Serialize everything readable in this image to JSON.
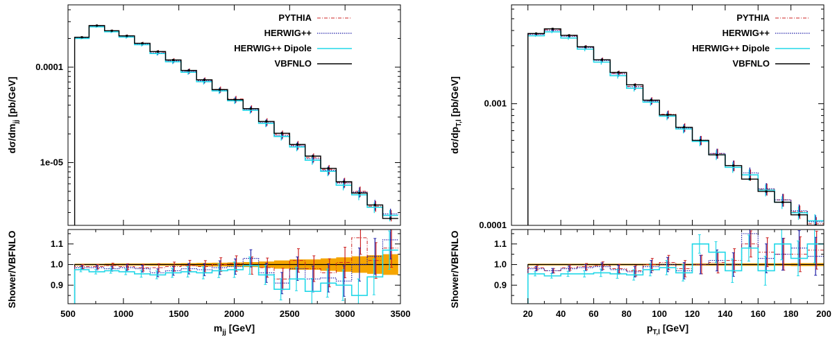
{
  "colors": {
    "PYTHIA": "#cc2222",
    "HERWIG++": "#1f1fa8",
    "HERWIG++ Dipole": "#22d8e8",
    "VBFNLO": "#000000",
    "band": "#f5a500"
  },
  "chart_data": [
    {
      "type": "line",
      "subtype": "histogram-step",
      "yscale": "log",
      "xlabel": "m",
      "xlabel_sub": "jj",
      "xlabel_unit": " [GeV]",
      "ylabel": "dσ/dm",
      "ylabel_sub": "jj",
      "ylabel_unit": " [pb/GeV]",
      "ratio_ylabel": "Shower/VBFNLO",
      "xlim": [
        500,
        3500
      ],
      "ylim": [
        2.2e-06,
        0.00045
      ],
      "ratio_ylim": [
        0.81,
        1.17
      ],
      "xticks": [
        500,
        1000,
        1500,
        2000,
        2500,
        3000,
        3500
      ],
      "xtick_labels": [
        "500",
        "1000",
        "1500",
        "2000",
        "2500",
        "3000",
        "3500"
      ],
      "yticks": [
        0.0001,
        1e-05
      ],
      "ytick_labels": [
        "0.0001",
        "1e-05"
      ],
      "ratio_yticks": [
        1.1,
        1.0,
        0.9
      ],
      "ratio_ytick_labels": [
        "1.1",
        "1.0",
        "0.9"
      ],
      "legend": "top-right",
      "bin_edges": [
        560,
        690,
        830,
        960,
        1100,
        1240,
        1380,
        1520,
        1660,
        1800,
        1940,
        2080,
        2220,
        2360,
        2500,
        2640,
        2780,
        2920,
        3060,
        3200,
        3340,
        3480
      ],
      "series": [
        {
          "name": "PYTHIA",
          "values": [
            0.000205,
            0.000271,
            0.00024,
            0.000212,
            0.000177,
            0.000144,
            0.000118,
            9.15e-05,
            7.33e-05,
            5.85e-05,
            4.64e-05,
            3.68e-05,
            2.68e-05,
            1.98e-05,
            1.53e-05,
            1.13e-05,
            8.5e-06,
            6.2e-06,
            5e-06,
            3.5e-06,
            2.8e-06
          ],
          "ratio": [
            0.99,
            0.99,
            0.995,
            0.99,
            0.985,
            0.985,
            0.99,
            0.995,
            0.99,
            1.0,
            1.005,
            0.995,
            0.985,
            0.93,
            1.02,
            0.98,
            0.96,
            1.01,
            1.13,
            1.02,
            1.08
          ]
        },
        {
          "name": "HERWIG++",
          "values": [
            0.000203,
            0.000269,
            0.000238,
            0.00021,
            0.000175,
            0.000141,
            0.000116,
            9.05e-05,
            7.22e-05,
            5.75e-05,
            4.55e-05,
            3.62e-05,
            2.62e-05,
            1.93e-05,
            1.5e-05,
            1.1e-05,
            8.3e-06,
            6.1e-06,
            4.9e-06,
            3.6e-06,
            2.9e-06
          ],
          "ratio": [
            0.985,
            0.985,
            0.98,
            0.985,
            0.98,
            0.96,
            0.97,
            0.98,
            0.975,
            0.985,
            0.99,
            1.03,
            0.96,
            0.91,
            0.98,
            0.93,
            0.935,
            0.92,
            1.0,
            1.04,
            1.12
          ]
        },
        {
          "name": "HERWIG++ Dipole",
          "values": [
            0.0002,
            0.000265,
            0.000235,
            0.000207,
            0.000172,
            0.000139,
            0.000114,
            8.85e-05,
            7.05e-05,
            5.65e-05,
            4.45e-05,
            3.53e-05,
            2.58e-05,
            1.88e-05,
            1.46e-05,
            1.06e-05,
            8.1e-06,
            5.8e-06,
            4.6e-06,
            3.4e-06,
            2.8e-06
          ],
          "ratio": [
            0.975,
            0.965,
            0.97,
            0.965,
            0.955,
            0.95,
            0.96,
            0.965,
            0.96,
            0.97,
            0.975,
            0.995,
            0.95,
            0.88,
            0.93,
            0.87,
            0.91,
            0.9,
            0.85,
            0.94,
            1.07
          ]
        },
        {
          "name": "VBFNLO",
          "values": [
            0.000206,
            0.000273,
            0.000241,
            0.000213,
            0.000178,
            0.000146,
            0.000119,
            9.25e-05,
            7.37e-05,
            5.82e-05,
            4.57e-05,
            3.68e-05,
            2.7e-05,
            2.03e-05,
            1.55e-05,
            1.17e-05,
            8.7e-06,
            6.3e-06,
            4.8e-06,
            3.6e-06,
            2.6e-06
          ],
          "band_halfwidth": [
            0.004,
            0.004,
            0.005,
            0.005,
            0.005,
            0.006,
            0.006,
            0.007,
            0.008,
            0.009,
            0.01,
            0.012,
            0.015,
            0.02,
            0.025,
            0.025,
            0.03,
            0.035,
            0.04,
            0.045,
            0.05
          ]
        }
      ]
    },
    {
      "type": "line",
      "subtype": "histogram-step",
      "yscale": "log",
      "xlabel": "p",
      "xlabel_sub": "T,l",
      "xlabel_unit": " [GeV]",
      "ylabel": "dσ/dp",
      "ylabel_sub": "T,l",
      "ylabel_unit": " [pb/GeV]",
      "ratio_ylabel": "Shower/VBFNLO",
      "xlim": [
        10,
        200
      ],
      "ylim": [
        0.0001,
        0.0065
      ],
      "ratio_ylim": [
        0.81,
        1.17
      ],
      "xticks": [
        20,
        40,
        60,
        80,
        100,
        120,
        140,
        160,
        180,
        200
      ],
      "xtick_labels": [
        "20",
        "40",
        "60",
        "80",
        "100",
        "120",
        "140",
        "160",
        "180",
        "200"
      ],
      "yticks": [
        0.001,
        0.0001
      ],
      "ytick_labels": [
        "0.001",
        "0.0001"
      ],
      "ratio_yticks": [
        1.1,
        1.0,
        0.9
      ],
      "ratio_ytick_labels": [
        "1.1",
        "1.0",
        "0.9"
      ],
      "legend": "top-right",
      "bin_edges": [
        20,
        30,
        40,
        50,
        60,
        70,
        80,
        90,
        100,
        110,
        120,
        130,
        140,
        150,
        160,
        170,
        180,
        190,
        200
      ],
      "series": [
        {
          "name": "PYTHIA",
          "values": [
            0.00373,
            0.00405,
            0.00361,
            0.00292,
            0.00229,
            0.00178,
            0.00139,
            0.00106,
            0.00082,
            0.00064,
            0.0005,
            0.00039,
            0.00031,
            0.00026,
            0.000198,
            0.000162,
            0.000129,
            0.000103
          ],
          "ratio": [
            0.985,
            0.97,
            0.985,
            0.99,
            0.995,
            0.98,
            0.97,
            1.0,
            1.01,
            0.98,
            1.0,
            1.01,
            1.02,
            1.1,
            1.06,
            1.05,
            1.05,
            1.07
          ]
        },
        {
          "name": "HERWIG++",
          "values": [
            0.00372,
            0.00402,
            0.00358,
            0.0029,
            0.00227,
            0.00176,
            0.00138,
            0.00105,
            0.00081,
            0.00063,
            0.0005,
            0.00039,
            0.00031,
            0.00027,
            0.0002,
            0.000162,
            0.000132,
            0.000107
          ],
          "ratio": [
            0.98,
            0.97,
            0.98,
            0.985,
            0.99,
            0.975,
            0.965,
            0.99,
            1.0,
            0.97,
            1.0,
            1.02,
            1.0,
            1.15,
            1.03,
            1.05,
            1.08,
            1.04
          ]
        },
        {
          "name": "HERWIG++ Dipole",
          "values": [
            0.00362,
            0.0039,
            0.00347,
            0.00281,
            0.0022,
            0.0017,
            0.00134,
            0.00103,
            0.00079,
            0.00062,
            0.00049,
            0.00038,
            0.0003,
            0.00026,
            0.000195,
            0.000155,
            0.000127,
            0.000109
          ],
          "ratio": [
            0.955,
            0.945,
            0.955,
            0.955,
            0.96,
            0.955,
            0.95,
            0.975,
            0.985,
            0.96,
            1.1,
            1.06,
            0.97,
            1.08,
            0.97,
            1.1,
            1.03,
            1.1
          ]
        },
        {
          "name": "VBFNLO",
          "values": [
            0.00378,
            0.00413,
            0.00365,
            0.00294,
            0.0023,
            0.00181,
            0.00143,
            0.00107,
            0.00081,
            0.00064,
            0.0005,
            0.00038,
            0.00031,
            0.00024,
            0.00019,
            0.000155,
            0.000122,
            0.0001
          ],
          "band_halfwidth": [
            0.004,
            0.004,
            0.004,
            0.004,
            0.004,
            0.004,
            0.004,
            0.004,
            0.004,
            0.004,
            0.005,
            0.005,
            0.005,
            0.006,
            0.006,
            0.006,
            0.007,
            0.007
          ]
        }
      ]
    }
  ]
}
